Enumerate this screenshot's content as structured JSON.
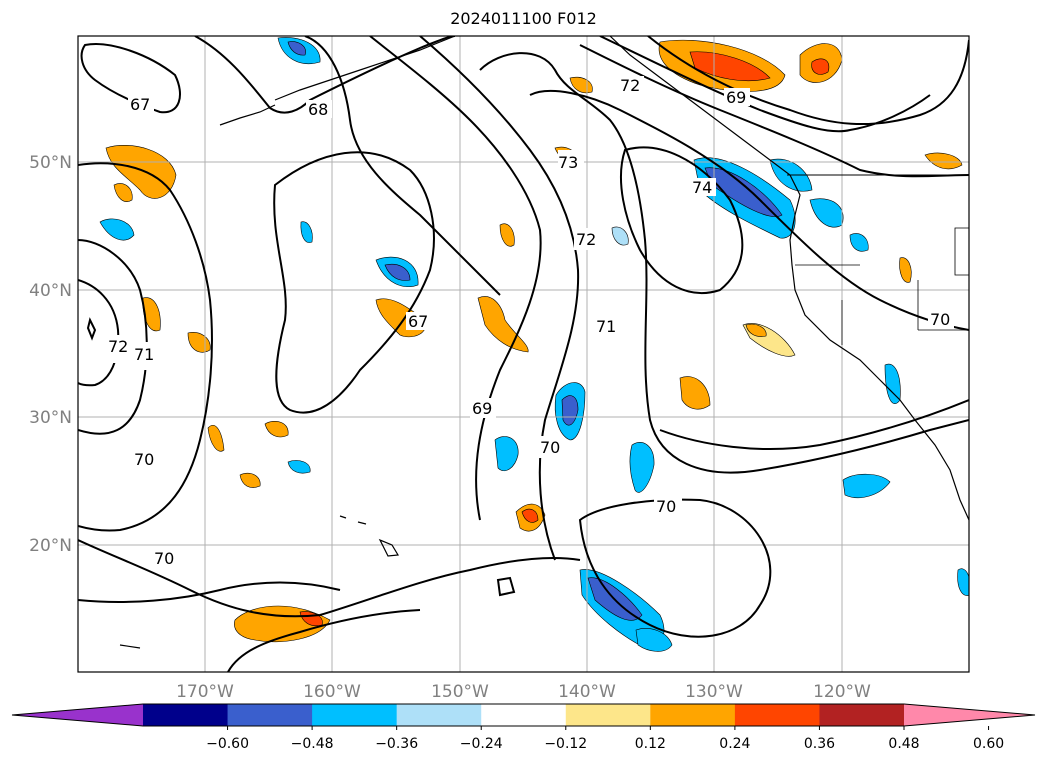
{
  "title": "2024011100 F012",
  "latitude_labels": [
    "50°N",
    "40°N",
    "30°N",
    "20°N"
  ],
  "longitude_labels": [
    "170°W",
    "160°W",
    "150°W",
    "140°W",
    "130°W",
    "120°W"
  ],
  "contour_labels": [
    "67",
    "68",
    "72",
    "69",
    "73",
    "74",
    "72",
    "67",
    "71",
    "72",
    "71",
    "70",
    "69",
    "70",
    "70",
    "70",
    "70"
  ],
  "colorbar": {
    "ticks": [
      "−0.60",
      "−0.48",
      "−0.36",
      "−0.24",
      "−0.12",
      "0.12",
      "0.24",
      "0.36",
      "0.48",
      "0.60"
    ],
    "colors": [
      "#9932cc",
      "#00008b",
      "#3a5fcd",
      "#00bfff",
      "#aee0f8",
      "#ffffff",
      "#fde68a",
      "#ffa500",
      "#ff4500",
      "#b22222",
      "#ff88aa"
    ]
  }
}
